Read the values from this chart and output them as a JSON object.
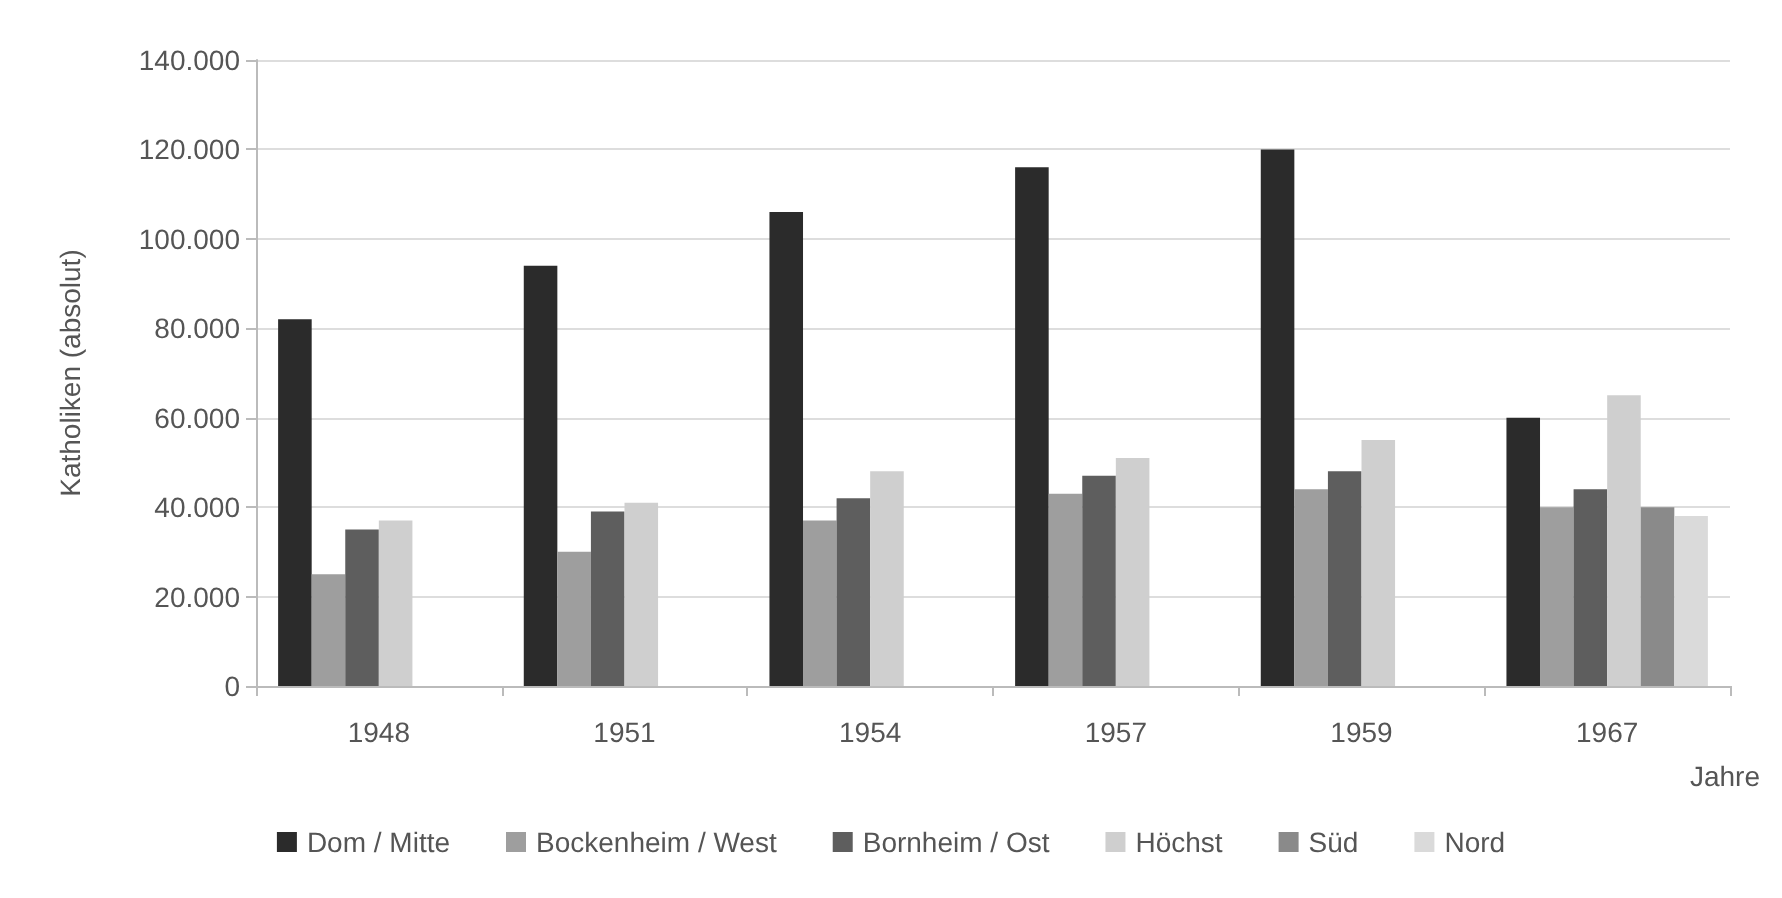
{
  "chart_data": {
    "type": "bar",
    "xlabel": "Jahre",
    "ylabel": "Katholiken (absolut)",
    "categories": [
      "1948",
      "1951",
      "1954",
      "1957",
      "1959",
      "1967"
    ],
    "series": [
      {
        "name": "Dom / Mitte",
        "color": "#2b2b2b",
        "values": [
          82000,
          94000,
          106000,
          116000,
          120000,
          60000
        ]
      },
      {
        "name": "Bockenheim / West",
        "color": "#9e9e9e",
        "values": [
          25000,
          30000,
          37000,
          43000,
          44000,
          40000
        ]
      },
      {
        "name": "Bornheim / Ost",
        "color": "#5e5e5e",
        "values": [
          35000,
          39000,
          42000,
          47000,
          48000,
          44000
        ]
      },
      {
        "name": "Höchst",
        "color": "#cfcfcf",
        "values": [
          37000,
          41000,
          48000,
          51000,
          55000,
          65000
        ]
      },
      {
        "name": "Süd",
        "color": "#8a8a8a",
        "values": [
          null,
          null,
          null,
          null,
          null,
          40000
        ]
      },
      {
        "name": "Nord",
        "color": "#dadada",
        "values": [
          null,
          null,
          null,
          null,
          null,
          38000
        ]
      }
    ],
    "ylim": [
      0,
      140000
    ],
    "yticks": [
      {
        "value": 0,
        "label": "0"
      },
      {
        "value": 20000,
        "label": "20.000"
      },
      {
        "value": 40000,
        "label": "40.000"
      },
      {
        "value": 60000,
        "label": "60.000"
      },
      {
        "value": 80000,
        "label": "80.000"
      },
      {
        "value": 100000,
        "label": "100.000"
      },
      {
        "value": 120000,
        "label": "120.000"
      },
      {
        "value": 140000,
        "label": "140.000"
      }
    ],
    "grid": "y",
    "legend": "bottom"
  }
}
